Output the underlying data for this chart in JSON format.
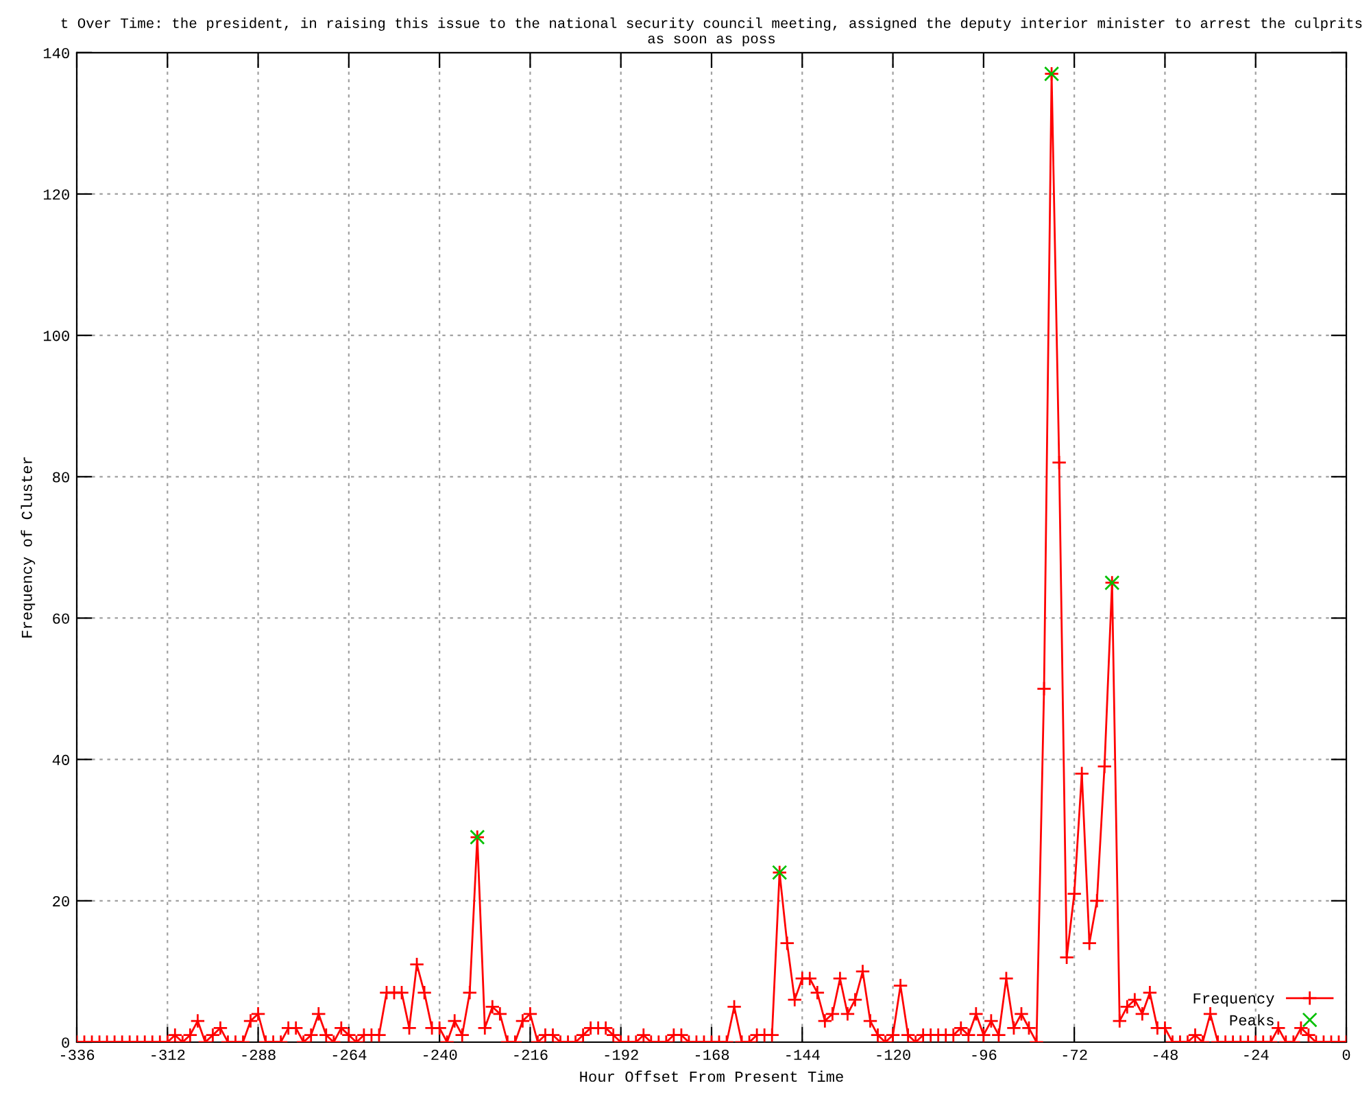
{
  "chart_data": {
    "type": "line",
    "title": "t Over Time: the president, in raising this issue to the national security council meeting, assigned the deputy interior minister to arrest the culprits as soon as poss",
    "xlabel": "Hour Offset From Present Time",
    "ylabel": "Frequency of Cluster",
    "series": [
      {
        "name": "Frequency",
        "color": "#ff0000",
        "marker": "cross",
        "x": [
          -336,
          -334,
          -332,
          -330,
          -328,
          -326,
          -324,
          -322,
          -320,
          -318,
          -316,
          -314,
          -312,
          -310,
          -308,
          -306,
          -304,
          -302,
          -300,
          -298,
          -296,
          -294,
          -292,
          -290,
          -288,
          -286,
          -284,
          -282,
          -280,
          -278,
          -276,
          -274,
          -272,
          -270,
          -268,
          -266,
          -264,
          -262,
          -260,
          -258,
          -256,
          -254,
          -252,
          -250,
          -248,
          -246,
          -244,
          -242,
          -240,
          -238,
          -236,
          -234,
          -232,
          -230,
          -228,
          -226,
          -224,
          -222,
          -220,
          -218,
          -216,
          -214,
          -212,
          -210,
          -208,
          -206,
          -204,
          -202,
          -200,
          -198,
          -196,
          -194,
          -192,
          -190,
          -188,
          -186,
          -184,
          -182,
          -180,
          -178,
          -176,
          -174,
          -172,
          -170,
          -168,
          -166,
          -164,
          -162,
          -160,
          -158,
          -156,
          -154,
          -152,
          -150,
          -148,
          -146,
          -144,
          -142,
          -140,
          -138,
          -136,
          -134,
          -132,
          -130,
          -128,
          -126,
          -124,
          -122,
          -120,
          -118,
          -116,
          -114,
          -112,
          -110,
          -108,
          -106,
          -104,
          -102,
          -100,
          -98,
          -96,
          -94,
          -92,
          -90,
          -88,
          -86,
          -84,
          -82,
          -80,
          -78,
          -76,
          -74,
          -72,
          -70,
          -68,
          -66,
          -64,
          -62,
          -60,
          -58,
          -56,
          -54,
          -52,
          -50,
          -48,
          -46,
          -44,
          -42,
          -40,
          -38,
          -36,
          -34,
          -32,
          -30,
          -28,
          -26,
          -24,
          -22,
          -20,
          -18,
          -16,
          -14,
          -12,
          -10,
          -8,
          -6,
          -4,
          -2,
          0
        ],
        "values": [
          0,
          0,
          0,
          0,
          0,
          0,
          0,
          0,
          0,
          0,
          0,
          0,
          0,
          1,
          0,
          1,
          3,
          0,
          1,
          2,
          0,
          0,
          0,
          3,
          4,
          0,
          0,
          0,
          2,
          2,
          0,
          1,
          4,
          1,
          0,
          2,
          1,
          0,
          1,
          1,
          1,
          7,
          7,
          7,
          2,
          11,
          7,
          2,
          2,
          0,
          3,
          1,
          7,
          29,
          2,
          5,
          4,
          0,
          0,
          3,
          4,
          0,
          1,
          1,
          0,
          0,
          0,
          1,
          2,
          2,
          2,
          1,
          0,
          0,
          0,
          1,
          0,
          0,
          0,
          1,
          1,
          0,
          0,
          0,
          0,
          0,
          0,
          5,
          0,
          0,
          1,
          1,
          1,
          24,
          14,
          6,
          9,
          9,
          7,
          3,
          4,
          9,
          4,
          6,
          10,
          3,
          1,
          0,
          1,
          8,
          1,
          0,
          1,
          1,
          1,
          1,
          1,
          2,
          1,
          4,
          1,
          3,
          1,
          9,
          2,
          4,
          2,
          0,
          50,
          137,
          82,
          12,
          21,
          38,
          14,
          20,
          39,
          65,
          3,
          5,
          6,
          4,
          7,
          2,
          2,
          0,
          0,
          0,
          1,
          0,
          4,
          0,
          0,
          0,
          0,
          0,
          0,
          0,
          0,
          2,
          0,
          0,
          2,
          1,
          0,
          0,
          0,
          0,
          0
        ]
      },
      {
        "name": "Peaks",
        "type": "scatter",
        "color": "#00c000",
        "marker": "cross",
        "x": [
          -230,
          -150,
          -78,
          -62
        ],
        "values": [
          29,
          24,
          137,
          65
        ]
      }
    ],
    "xlim": [
      -336,
      0
    ],
    "xticks": [
      -336,
      -312,
      -288,
      -264,
      -240,
      -216,
      -192,
      -168,
      -144,
      -120,
      -96,
      -72,
      -48,
      -24,
      0
    ],
    "ylim": [
      0,
      140
    ],
    "yticks": [
      0,
      20,
      40,
      60,
      80,
      100,
      120,
      140
    ],
    "grid": true,
    "line_style": "solid",
    "legend": "bottom right"
  }
}
